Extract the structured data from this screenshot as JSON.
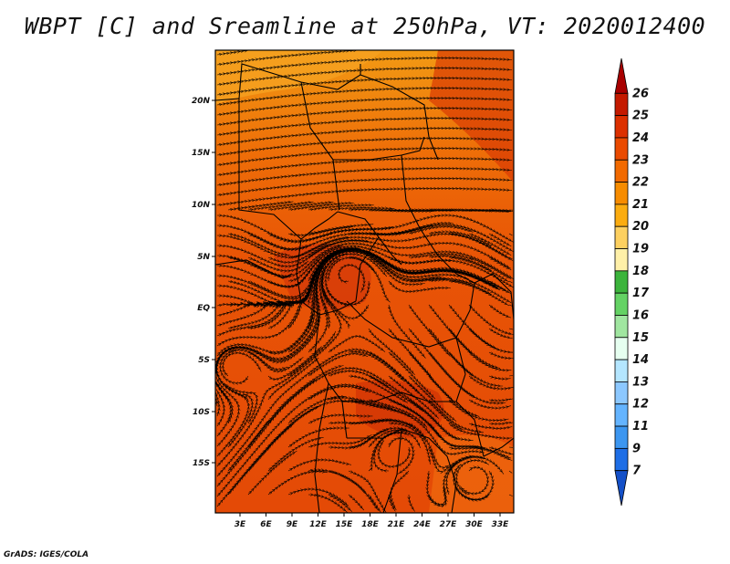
{
  "title": "WBPT [C] and Sreamline at 250hPa, VT: 2020012400",
  "footer": "GrADS: IGES/COLA",
  "map": {
    "lat_ticks": [
      "20N",
      "15N",
      "10N",
      "5N",
      "EQ",
      "5S",
      "10S",
      "15S"
    ],
    "lon_ticks": [
      "3E",
      "6E",
      "9E",
      "12E",
      "15E",
      "18E",
      "21E",
      "24E",
      "27E",
      "30E",
      "33E"
    ]
  },
  "colorbar": {
    "labels": [
      "26",
      "25",
      "24",
      "23",
      "22",
      "21",
      "20",
      "19",
      "18",
      "17",
      "16",
      "15",
      "14",
      "13",
      "12",
      "11",
      "9",
      "7"
    ],
    "colors": [
      "#a80000",
      "#c41a00",
      "#dc3000",
      "#ea4a00",
      "#f26a00",
      "#f78c00",
      "#fbac10",
      "#fdd060",
      "#fff0a8",
      "#3cb43c",
      "#64d264",
      "#a0e6a0",
      "#e6fff0",
      "#b4e6ff",
      "#8cc8ff",
      "#64b4ff",
      "#3c96f0",
      "#1e6ee6",
      "#1450c8"
    ]
  }
}
